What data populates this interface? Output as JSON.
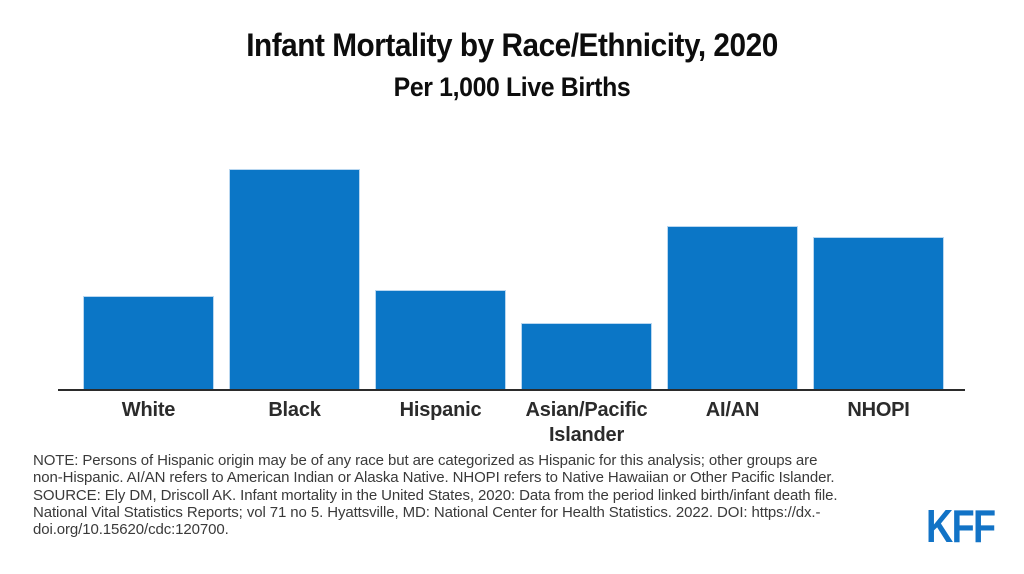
{
  "chart_data": {
    "type": "bar",
    "title": "Infant Mortality by Race/Ethnicity, 2020",
    "subtitle": "Per 1,000 Live Births",
    "categories": [
      "White",
      "Black",
      "Hispanic",
      "Asian/Pacific Islander",
      "AI/AN",
      "NHOPI"
    ],
    "values": [
      4.4,
      10.4,
      4.7,
      3.1,
      7.7,
      7.2
    ],
    "ylim": [
      0,
      10.4
    ],
    "xlabel": "",
    "ylabel": "",
    "gridlines": false,
    "y_axis_shown": false,
    "value_labels_shown": false,
    "legend": "none",
    "bar_color": "#0b76c6",
    "bar_edge_color": "#b9d7f0",
    "axis_line_color": "#2b2b2b"
  },
  "note": {
    "lines": [
      "NOTE: Persons of Hispanic origin may be of any race but are categorized as Hispanic for this analysis; other groups are",
      "non-Hispanic. AI/AN refers to American Indian or Alaska Native. NHOPI refers to Native Hawaiian or Other Pacific Islander.",
      "SOURCE: Ely DM, Driscoll AK. Infant mortality in the United States, 2020: Data from the period linked birth/infant death file.",
      "National Vital Statistics Reports; vol 71 no 5. Hyattsville, MD: National Center for Health Statistics. 2022. DOI: https://dx.-",
      "doi.org/10.15620/cdc:120700."
    ]
  },
  "footer": {
    "logo_text": "KFF",
    "logo_color": "#1273c6"
  }
}
